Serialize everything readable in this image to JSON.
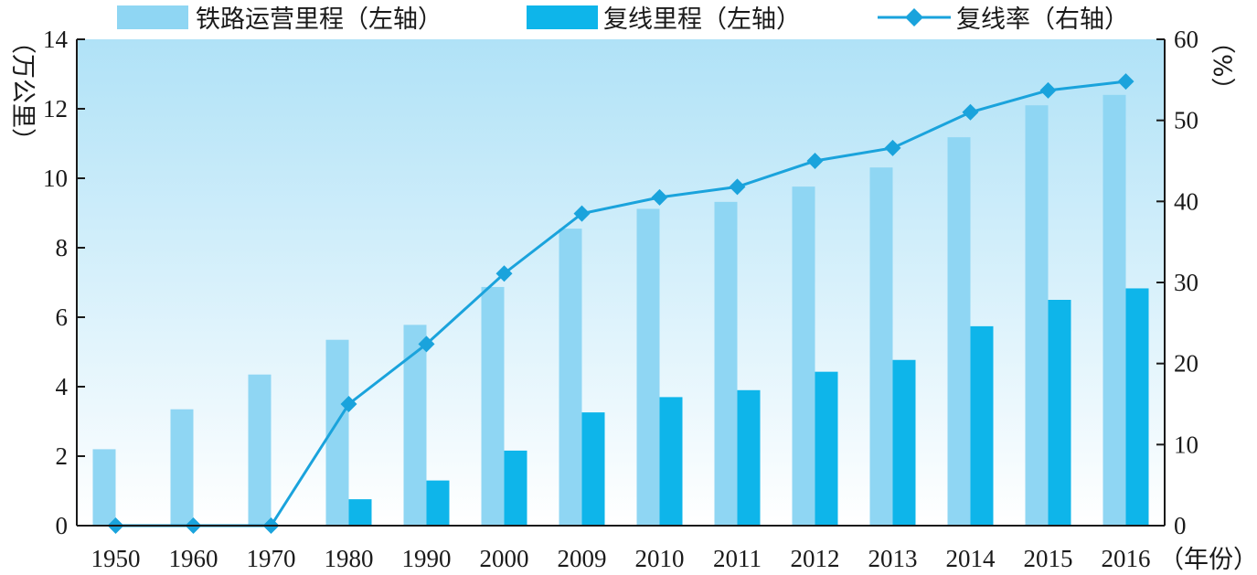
{
  "chart_data": {
    "type": "bar",
    "categories": [
      "1950",
      "1960",
      "1970",
      "1980",
      "1990",
      "2000",
      "2009",
      "2010",
      "2011",
      "2012",
      "2013",
      "2014",
      "2015",
      "2016"
    ],
    "series": [
      {
        "name": "铁路运营里程（左轴）",
        "kind": "bar",
        "axis": "left",
        "color": "#8fd6f3",
        "values": [
          2.2,
          3.35,
          4.35,
          5.35,
          5.78,
          6.87,
          8.55,
          9.12,
          9.32,
          9.76,
          10.31,
          11.18,
          12.1,
          12.4
        ]
      },
      {
        "name": "复线里程（左轴）",
        "kind": "bar",
        "axis": "left",
        "color": "#0eb5ea",
        "values": [
          0,
          0,
          0,
          0.76,
          1.3,
          2.16,
          3.26,
          3.7,
          3.9,
          4.43,
          4.77,
          5.74,
          6.5,
          6.83
        ]
      },
      {
        "name": "复线率（右轴）",
        "kind": "line",
        "axis": "right",
        "color": "#1aa3dc",
        "values": [
          0,
          0,
          0,
          15,
          22.4,
          31.1,
          38.5,
          40.5,
          41.8,
          45.0,
          46.6,
          51.0,
          53.7,
          54.8
        ]
      }
    ],
    "left_axis": {
      "label": "（万公里）",
      "ylim": [
        0,
        14
      ],
      "ticks": [
        0,
        2,
        4,
        6,
        8,
        10,
        12,
        14
      ]
    },
    "right_axis": {
      "label": "（%）",
      "ylim": [
        0,
        60
      ],
      "ticks": [
        0,
        10,
        20,
        30,
        40,
        50,
        60
      ]
    },
    "xlabel": "（年份）",
    "legend_position": "top",
    "colors": {
      "bg_top": "#b0e2f7",
      "bg_bottom": "#ffffff",
      "axis": "#1a1a1a"
    }
  }
}
